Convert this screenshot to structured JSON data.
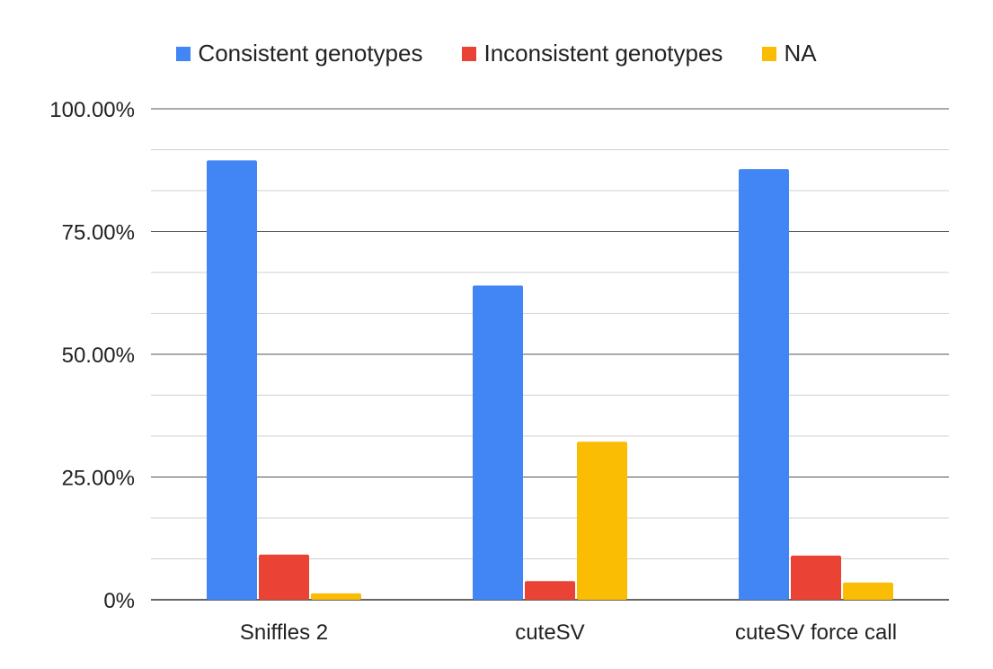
{
  "chart_data": {
    "type": "bar",
    "title": "",
    "xlabel": "",
    "ylabel": "",
    "categories": [
      "Sniffles 2",
      "cuteSV",
      "cuteSV force call"
    ],
    "series": [
      {
        "name": "Consistent genotypes",
        "color": "#4285F4",
        "values": [
          89.5,
          64.0,
          87.7
        ]
      },
      {
        "name": "Inconsistent genotypes",
        "color": "#EA4335",
        "values": [
          9.2,
          3.8,
          9.0
        ]
      },
      {
        "name": "NA",
        "color": "#FBBC04",
        "values": [
          1.3,
          32.2,
          3.5
        ]
      }
    ],
    "ylim": [
      0,
      100
    ],
    "yticks": [
      0,
      25,
      50,
      75,
      100
    ],
    "ytick_labels": [
      "0%",
      "25.00%",
      "50.00%",
      "75.00%",
      "100.00%"
    ],
    "minor_gridlines": true,
    "grid": true,
    "legend_position": "top"
  }
}
